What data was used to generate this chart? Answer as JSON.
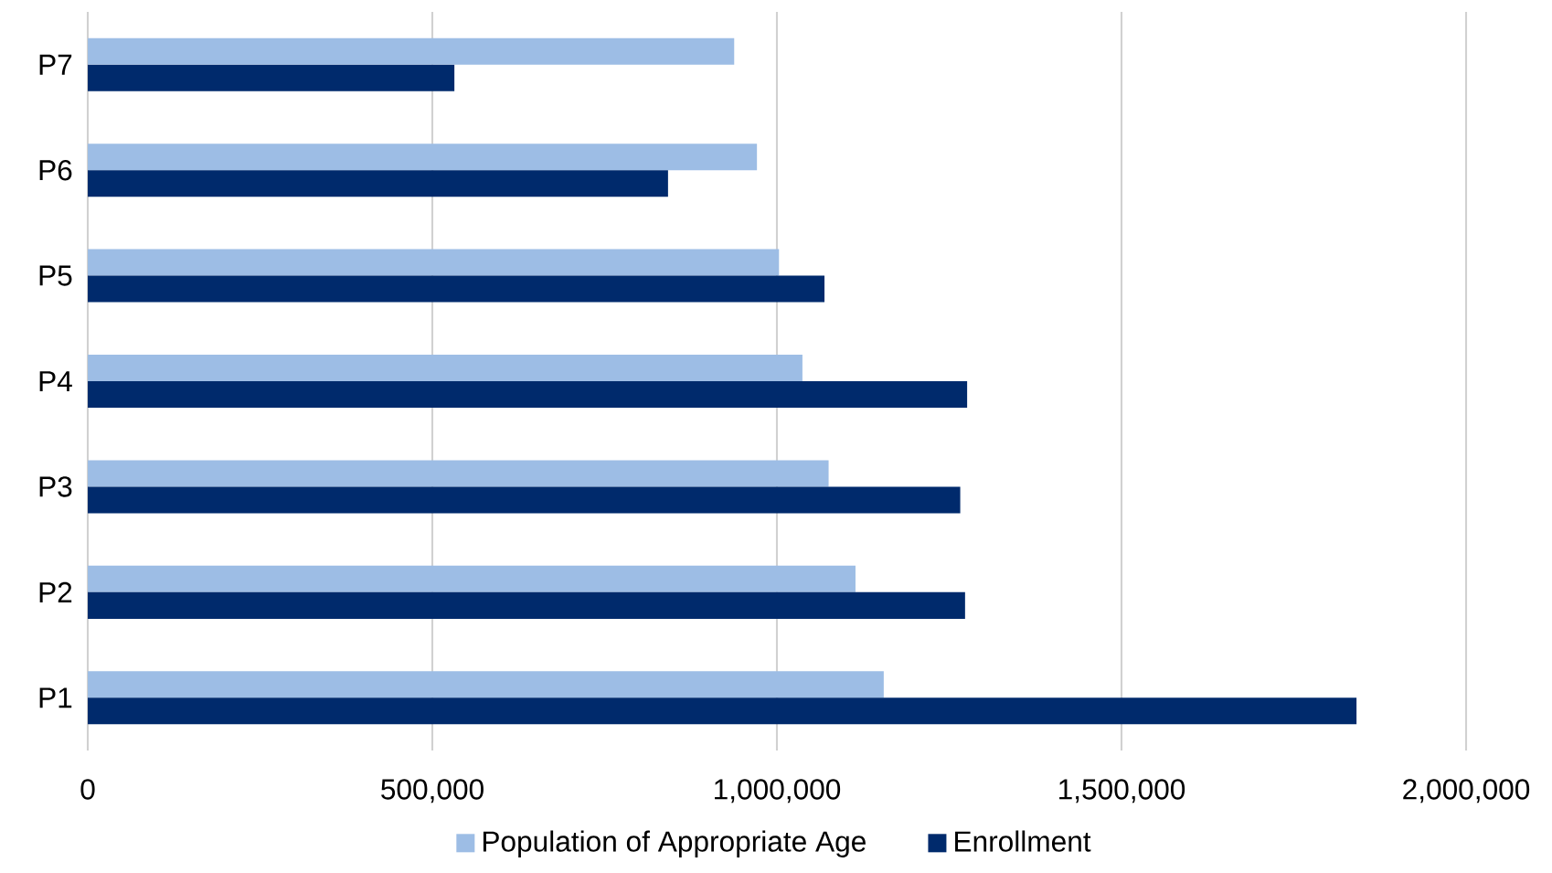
{
  "chart_data": {
    "type": "bar",
    "orientation": "horizontal",
    "categories": [
      "P7",
      "P6",
      "P5",
      "P4",
      "P3",
      "P2",
      "P1"
    ],
    "series": [
      {
        "name": "Population of Appropriate Age",
        "color": "#9dbde5",
        "values": [
          938000,
          971000,
          1003000,
          1037000,
          1075000,
          1114000,
          1155000
        ]
      },
      {
        "name": "Enrollment",
        "color": "#002a6c",
        "values": [
          532000,
          842000,
          1069000,
          1276000,
          1266000,
          1273000,
          1841000
        ]
      }
    ],
    "xlim": [
      0,
      2000000
    ],
    "xticks": [
      0,
      {
        "value": 500000,
        "label": "500,000"
      },
      {
        "value": 1000000,
        "label": "1,000,000"
      },
      {
        "value": 1500000,
        "label": "1,500,000"
      },
      {
        "value": 2000000,
        "label": "2,000,000"
      }
    ],
    "grid": "x",
    "legend": "bottom"
  }
}
